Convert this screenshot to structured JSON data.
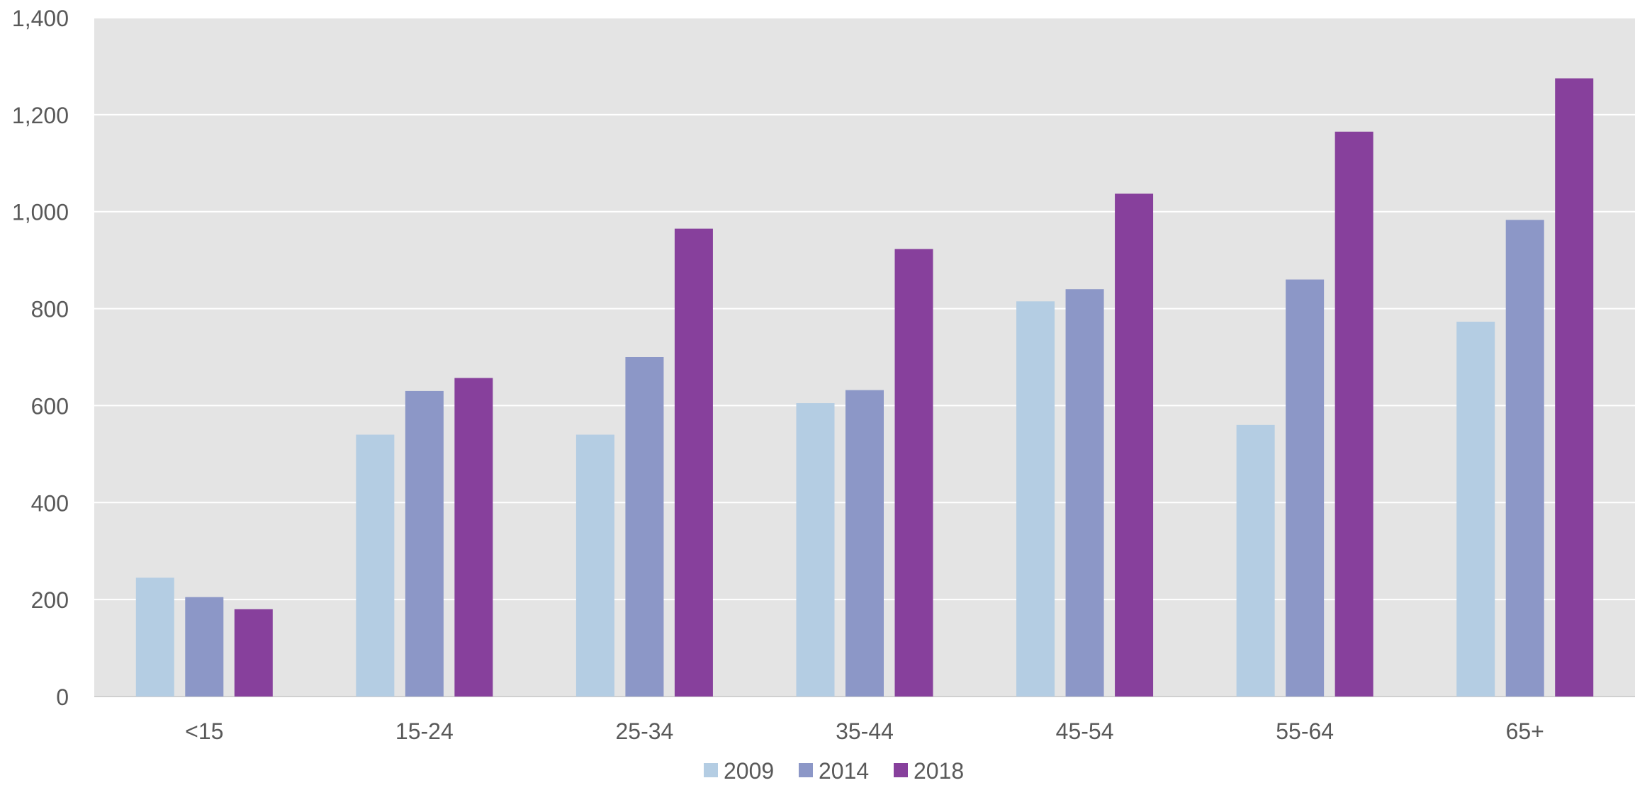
{
  "chart_data": {
    "type": "bar",
    "title": "",
    "xlabel": "",
    "ylabel": "",
    "categories": [
      "<15",
      "15-24",
      "25-34",
      "35-44",
      "45-54",
      "55-64",
      "65+"
    ],
    "series": [
      {
        "name": "2009",
        "color": "#b4cde3",
        "values": [
          245,
          540,
          540,
          605,
          815,
          560,
          773
        ]
      },
      {
        "name": "2014",
        "color": "#8c97c7",
        "values": [
          205,
          630,
          700,
          632,
          840,
          860,
          983
        ]
      },
      {
        "name": "2018",
        "color": "#87409c",
        "values": [
          180,
          657,
          965,
          923,
          1037,
          1165,
          1275
        ]
      }
    ],
    "ylim": [
      0,
      1400
    ],
    "yticks": [
      0,
      200,
      400,
      600,
      800,
      1000,
      1200,
      1400
    ],
    "ytick_labels": [
      "0",
      "200",
      "400",
      "600",
      "800",
      "1,000",
      "1,200",
      "1,400"
    ],
    "grid": true,
    "legend_position": "bottom-center",
    "colors": {
      "plot_background": "#e4e4e4",
      "gridline": "#ffffff",
      "text": "#595959"
    }
  }
}
